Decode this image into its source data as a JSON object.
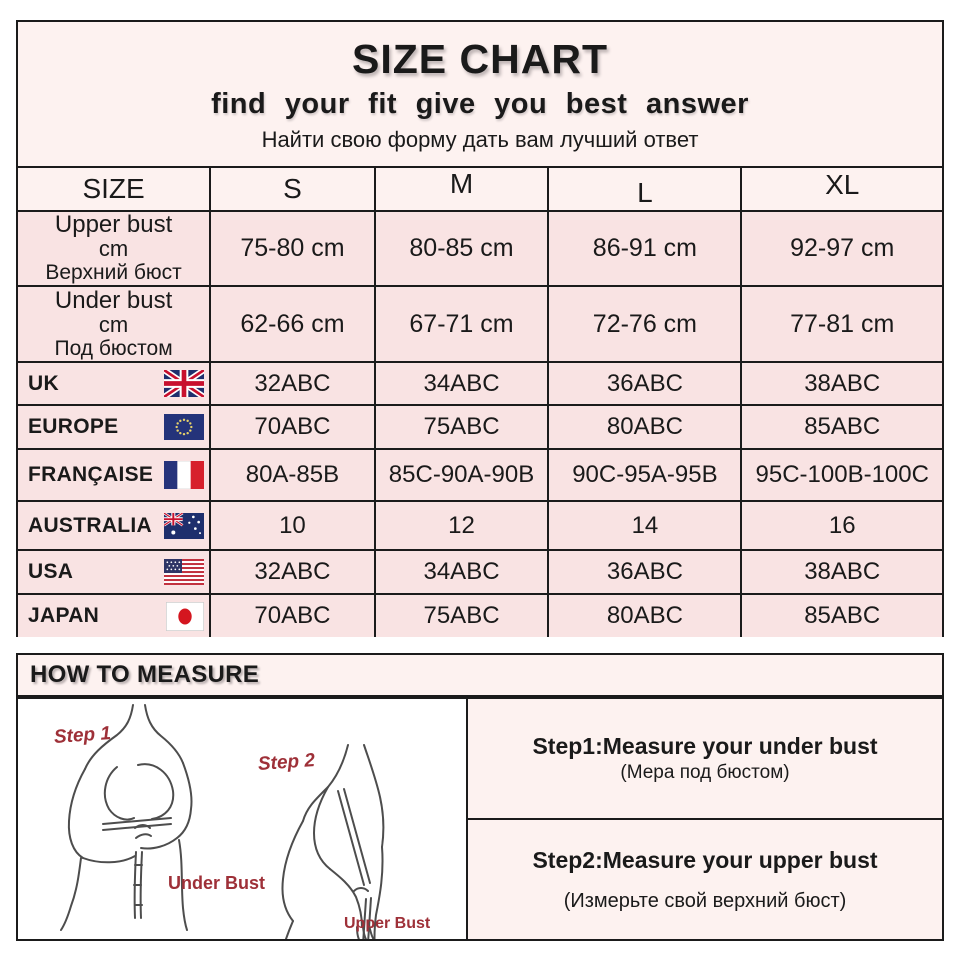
{
  "header": {
    "title": "SIZE CHART",
    "subtitle_en": "find your fit give you best answer",
    "subtitle_ru": "Найти свою форму дать вам лучший ответ"
  },
  "size_table": {
    "columns": [
      "SIZE",
      "S",
      "M",
      "L",
      "XL"
    ],
    "measure_rows": [
      {
        "label_en": "Upper bust",
        "label_unit": "cm",
        "label_ru": "Верхний бюст",
        "values": [
          "75-80 cm",
          "80-85 cm",
          "86-91 cm",
          "92-97 cm"
        ]
      },
      {
        "label_en": "Under bust",
        "label_unit": "cm",
        "label_ru": "Под бюстом",
        "values": [
          "62-66 cm",
          "67-71 cm",
          "72-76 cm",
          "77-81 cm"
        ]
      }
    ],
    "country_rows": [
      {
        "country": "UK",
        "flag": "uk-flag",
        "values": [
          "32ABC",
          "34ABC",
          "36ABC",
          "38ABC"
        ]
      },
      {
        "country": "EUROPE",
        "flag": "eu-flag",
        "values": [
          "70ABC",
          "75ABC",
          "80ABC",
          "85ABC"
        ]
      },
      {
        "country": "FRANÇAISE",
        "flag": "france-flag",
        "values": [
          "80A-85B",
          "85C-90A-90B",
          "90C-95A-95B",
          "95C-100B-100C"
        ]
      },
      {
        "country": "AUSTRALIA",
        "flag": "australia-flag",
        "values": [
          "10",
          "12",
          "14",
          "16"
        ]
      },
      {
        "country": "USA",
        "flag": "usa-flag",
        "values": [
          "32ABC",
          "34ABC",
          "36ABC",
          "38ABC"
        ]
      },
      {
        "country": "JAPAN",
        "flag": "japan-flag",
        "values": [
          "70ABC",
          "75ABC",
          "80ABC",
          "85ABC"
        ]
      }
    ]
  },
  "how_to_measure": {
    "title": "HOW TO MEASURE",
    "diagram": {
      "step1_label": "Step 1",
      "step2_label": "Step 2",
      "under_bust_label": "Under Bust",
      "upper_bust_label": "Upper Bust"
    },
    "steps": [
      {
        "title": "Step1:Measure your under bust",
        "subtitle_ru": "(Мера под бюстом)"
      },
      {
        "title": "Step2:Measure your upper bust",
        "subtitle_ru": "(Измерьте свой верхний бюст)"
      }
    ]
  },
  "colors": {
    "page_bg": "#ffffff",
    "panel_light_pink": "#fdf2f0",
    "row_rose_pink": "#f9e3e3",
    "border": "#1b1b1b",
    "accent_dark_red": "#9e3038"
  }
}
